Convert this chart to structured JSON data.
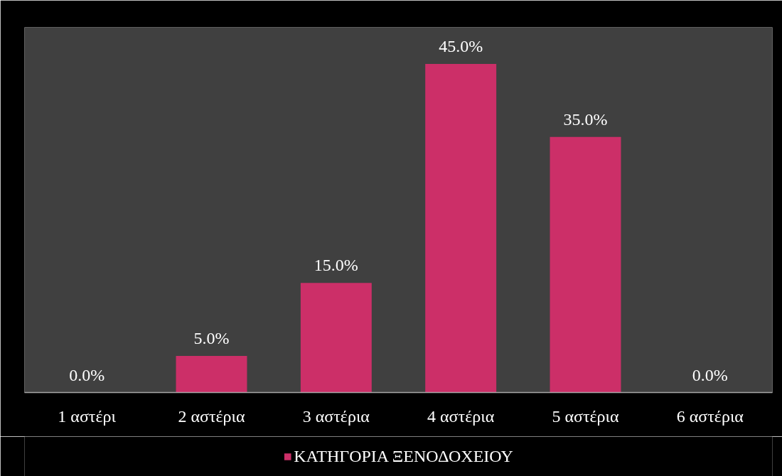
{
  "chart_data": {
    "type": "bar",
    "categories": [
      "1 αστέρι",
      "2 αστέρια",
      "3 αστέρια",
      "4 αστέρια",
      "5 αστέρια",
      "6 αστέρια"
    ],
    "series": [
      {
        "name": "ΚΑΤΗΓΟΡΙΑ ΞΕΝΟΔΟΧΕΙΟΥ",
        "color": "#cc2f68",
        "values": [
          0.0,
          5.0,
          15.0,
          45.0,
          35.0,
          0.0
        ],
        "value_labels": [
          "0.0%",
          "5.0%",
          "15.0%",
          "45.0%",
          "35.0%",
          "0.0%"
        ]
      }
    ],
    "ylim": [
      0,
      50
    ],
    "tick_labels": "x",
    "legend": "bottom"
  }
}
